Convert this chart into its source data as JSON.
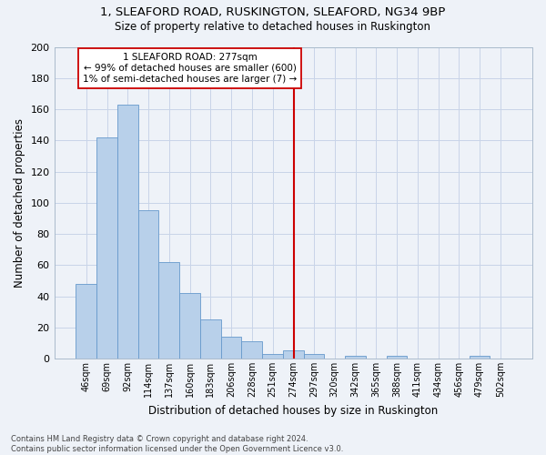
{
  "title_line1": "1, SLEAFORD ROAD, RUSKINGTON, SLEAFORD, NG34 9BP",
  "title_line2": "Size of property relative to detached houses in Ruskington",
  "xlabel": "Distribution of detached houses by size in Ruskington",
  "ylabel": "Number of detached properties",
  "footer_line1": "Contains HM Land Registry data © Crown copyright and database right 2024.",
  "footer_line2": "Contains public sector information licensed under the Open Government Licence v3.0.",
  "bar_labels": [
    "46sqm",
    "69sqm",
    "92sqm",
    "114sqm",
    "137sqm",
    "160sqm",
    "183sqm",
    "206sqm",
    "228sqm",
    "251sqm",
    "274sqm",
    "297sqm",
    "320sqm",
    "342sqm",
    "365sqm",
    "388sqm",
    "411sqm",
    "434sqm",
    "456sqm",
    "479sqm",
    "502sqm"
  ],
  "bar_values": [
    48,
    142,
    163,
    95,
    62,
    42,
    25,
    14,
    11,
    3,
    5,
    3,
    0,
    2,
    0,
    2,
    0,
    0,
    0,
    2,
    0
  ],
  "bar_color": "#b8d0ea",
  "bar_edge_color": "#6699cc",
  "grid_color": "#c8d4e8",
  "background_color": "#eef2f8",
  "vline_color": "#cc0000",
  "annotation_line1": "1 SLEAFORD ROAD: 277sqm",
  "annotation_line2": "← 99% of detached houses are smaller (600)",
  "annotation_line3": "1% of semi-detached houses are larger (7) →",
  "ylim": [
    0,
    200
  ],
  "yticks": [
    0,
    20,
    40,
    60,
    80,
    100,
    120,
    140,
    160,
    180,
    200
  ],
  "vline_index": 10.04
}
